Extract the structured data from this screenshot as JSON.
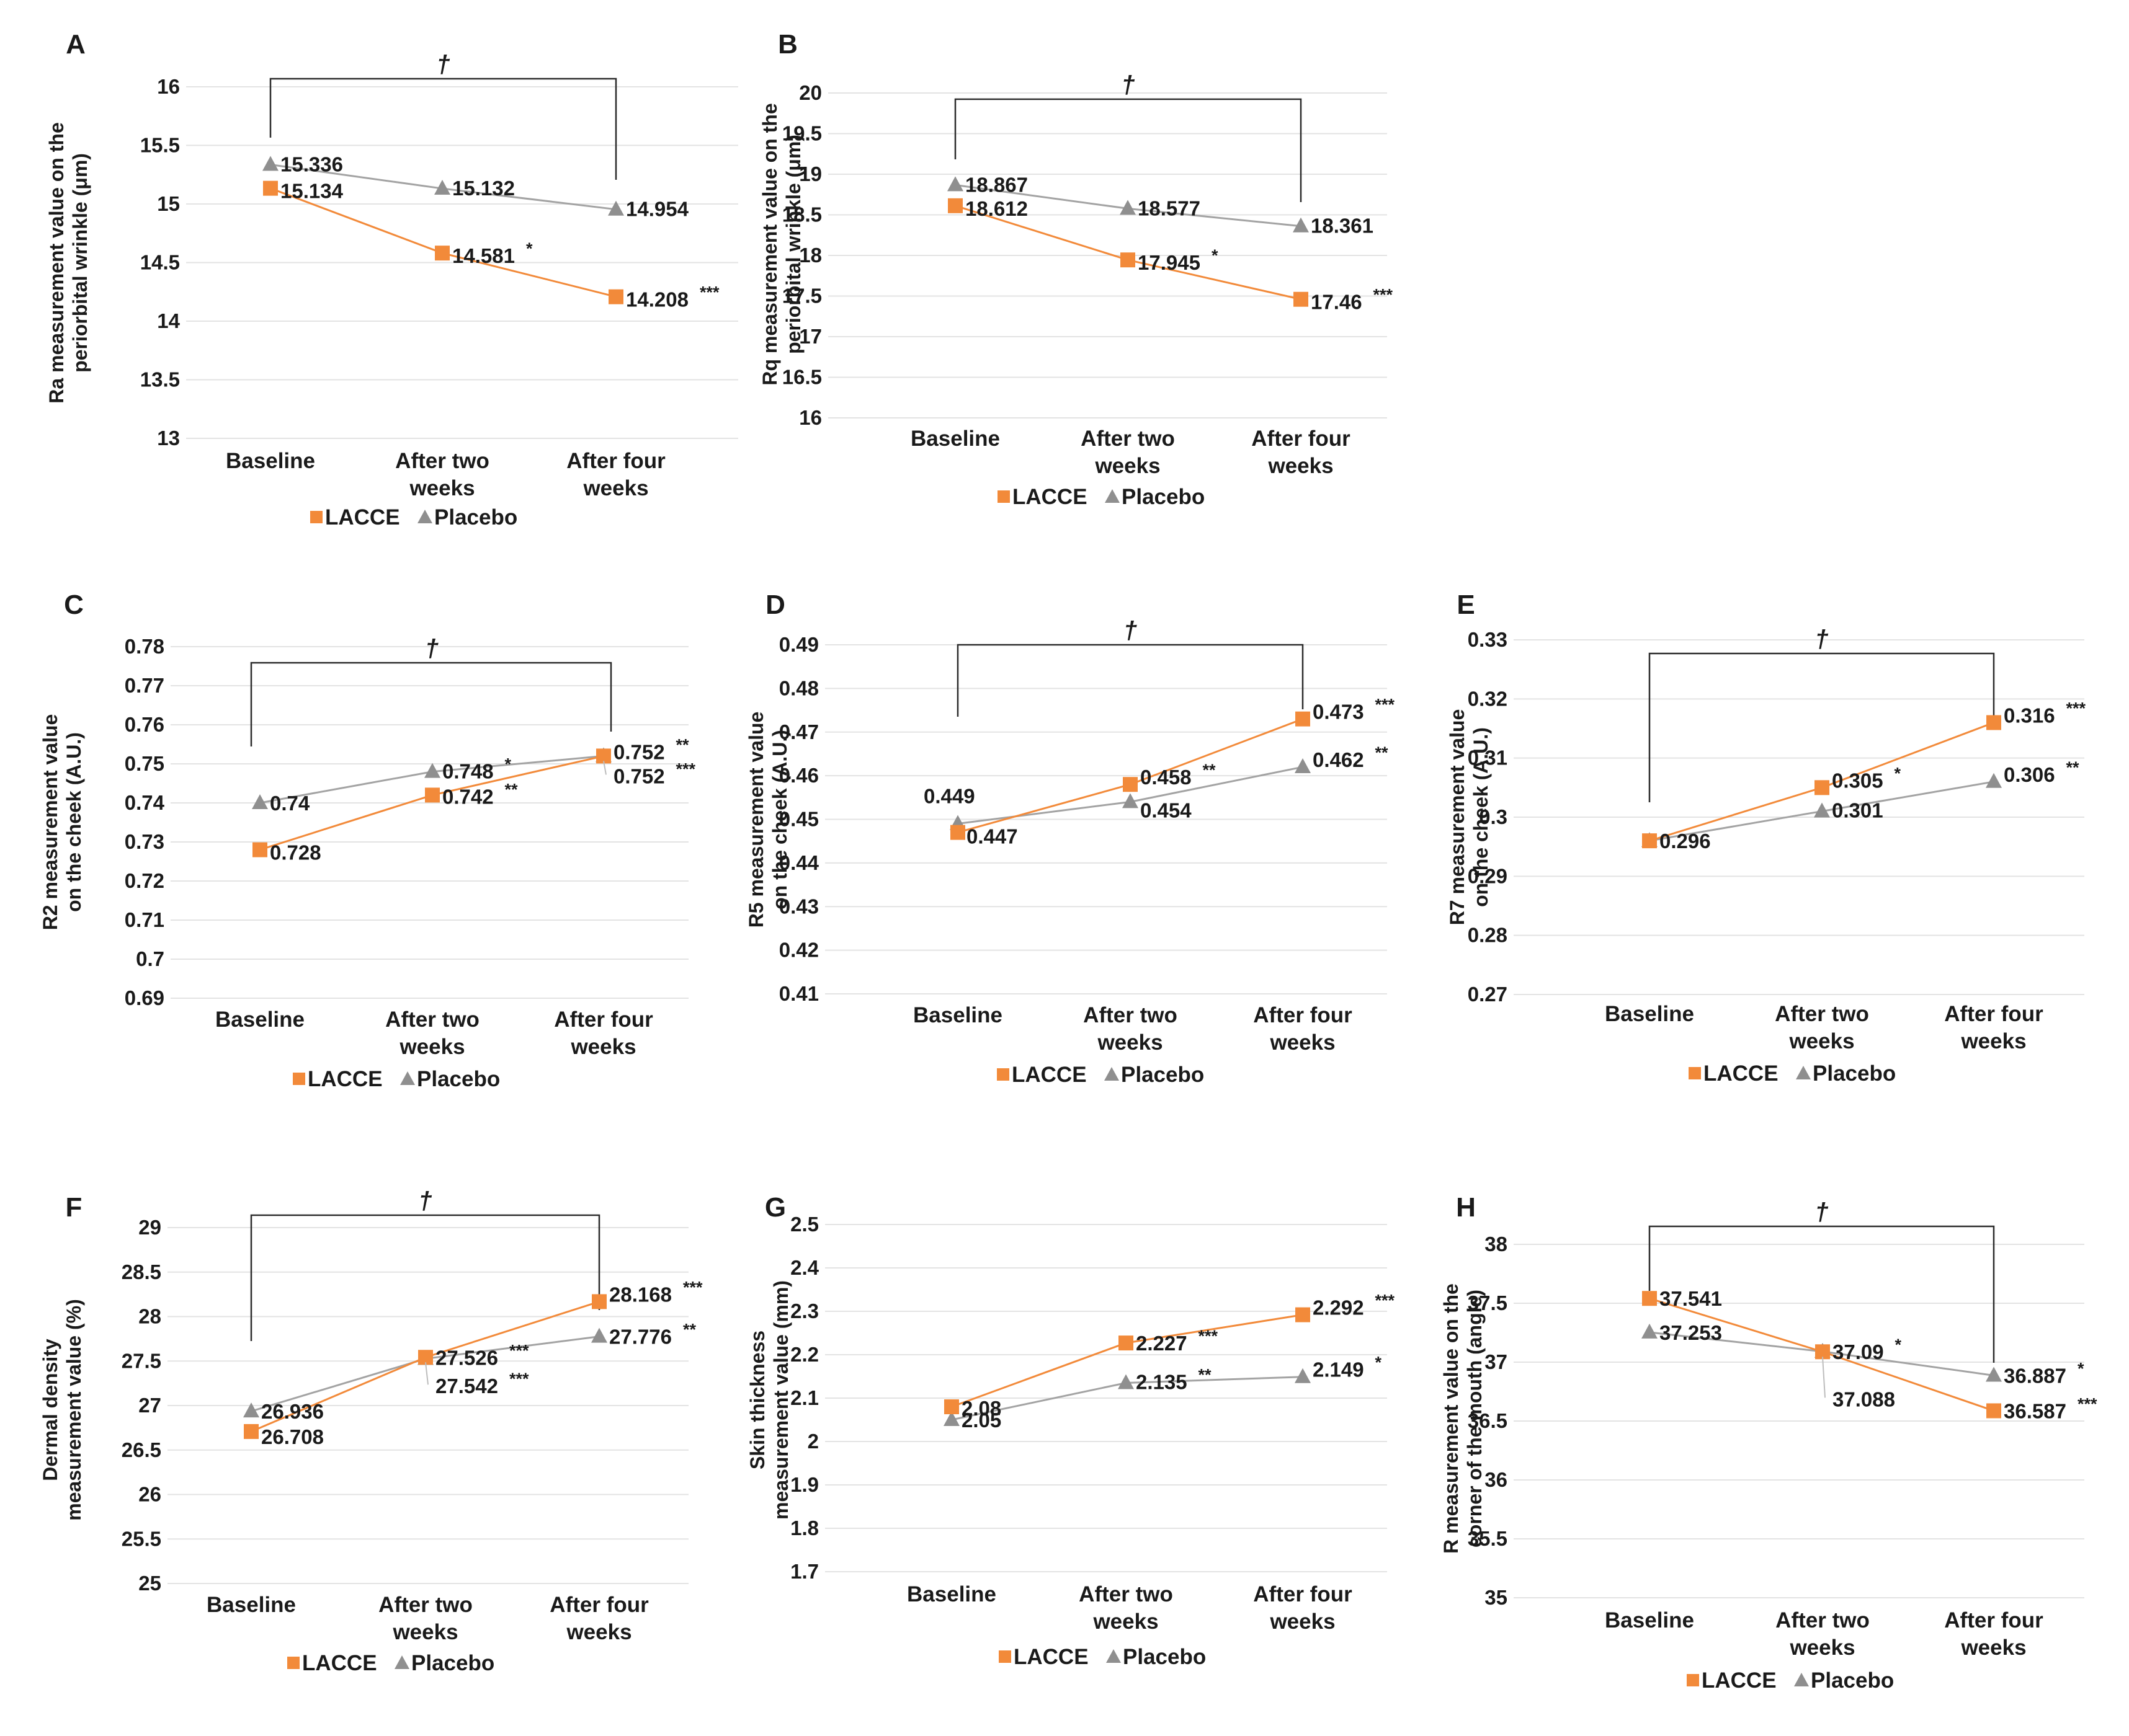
{
  "legend": {
    "lacce": "LACCE",
    "placebo": "Placebo"
  },
  "colors": {
    "lacce": "#F28A3A",
    "placebo": "#A3A3A3",
    "placebo_marker": "#8F8F8F",
    "grid": "#E3E3E3",
    "bracket": "#2B2B2B"
  },
  "categories": [
    [
      "Baseline"
    ],
    [
      "After two",
      "weeks"
    ],
    [
      "After four",
      "weeks"
    ]
  ],
  "significance_symbol": "†",
  "chart_data": [
    {
      "type": "line",
      "panel": "A",
      "ylabel": [
        "Ra measurement value on the",
        "periorbital wrinkle (μm)"
      ],
      "ylim": [
        13,
        16
      ],
      "ticks": [
        "13",
        "13.5",
        "14",
        "14.5",
        "15",
        "15.5",
        "16"
      ],
      "series": [
        {
          "name": "LACCE",
          "values": [
            15.134,
            14.581,
            14.208
          ],
          "labels": [
            "15.134",
            "14.581",
            "14.208"
          ],
          "stars": [
            "",
            "*",
            "***"
          ]
        },
        {
          "name": "Placebo",
          "values": [
            15.336,
            15.132,
            14.954
          ],
          "labels": [
            "15.336",
            "15.132",
            "14.954"
          ],
          "stars": [
            "",
            "",
            ""
          ]
        }
      ]
    },
    {
      "type": "line",
      "panel": "B",
      "ylabel": [
        "Rq measurement value on the",
        "periorbital wrinkle (μm)"
      ],
      "ylim": [
        16,
        20
      ],
      "ticks": [
        "16",
        "16.5",
        "17",
        "17.5",
        "18",
        "18.5",
        "19",
        "19.5",
        "20"
      ],
      "series": [
        {
          "name": "LACCE",
          "values": [
            18.612,
            17.945,
            17.46
          ],
          "labels": [
            "18.612",
            "17.945",
            "17.46"
          ],
          "stars": [
            "",
            "*",
            "***"
          ]
        },
        {
          "name": "Placebo",
          "values": [
            18.867,
            18.577,
            18.361
          ],
          "labels": [
            "18.867",
            "18.577",
            "18.361"
          ],
          "stars": [
            "",
            "",
            ""
          ]
        }
      ]
    },
    {
      "type": "line",
      "panel": "C",
      "ylabel": [
        "R2 measurement value",
        "on the cheek (A.U.)"
      ],
      "ylim": [
        0.69,
        0.78
      ],
      "ticks": [
        "0.69",
        "0.7",
        "0.71",
        "0.72",
        "0.73",
        "0.74",
        "0.75",
        "0.76",
        "0.77",
        "0.78"
      ],
      "series": [
        {
          "name": "LACCE",
          "values": [
            0.728,
            0.742,
            0.752
          ],
          "labels": [
            "0.728",
            "0.742",
            "0.752"
          ],
          "stars": [
            "",
            "**",
            "***"
          ]
        },
        {
          "name": "Placebo",
          "values": [
            0.74,
            0.748,
            0.752
          ],
          "labels": [
            "0.74",
            "0.748",
            "0.752"
          ],
          "stars": [
            "",
            "*",
            "**"
          ]
        }
      ]
    },
    {
      "type": "line",
      "panel": "D",
      "ylabel": [
        "R5 measurement value",
        "on the cheek (A.U.)"
      ],
      "ylim": [
        0.41,
        0.49
      ],
      "ticks": [
        "0.41",
        "0.42",
        "0.43",
        "0.44",
        "0.45",
        "0.46",
        "0.47",
        "0.48",
        "0.49"
      ],
      "series": [
        {
          "name": "LACCE",
          "values": [
            0.447,
            0.458,
            0.473
          ],
          "labels": [
            "0.447",
            "0.458",
            "0.473"
          ],
          "stars": [
            "",
            "**",
            "***"
          ]
        },
        {
          "name": "Placebo",
          "values": [
            0.449,
            0.454,
            0.462
          ],
          "labels": [
            "0.449",
            "0.454",
            "0.462"
          ],
          "stars": [
            "",
            "",
            "**"
          ]
        }
      ]
    },
    {
      "type": "line",
      "panel": "E",
      "ylabel": [
        "R7 measurement value",
        "on the cheek (A.U.)"
      ],
      "ylim": [
        0.27,
        0.33
      ],
      "ticks": [
        "0.27",
        "0.28",
        "0.29",
        "0.3",
        "0.31",
        "0.32",
        "0.33"
      ],
      "series": [
        {
          "name": "LACCE",
          "values": [
            0.296,
            0.305,
            0.316
          ],
          "labels": [
            "",
            "0.305",
            "0.316"
          ],
          "stars": [
            "",
            "*",
            "***"
          ]
        },
        {
          "name": "Placebo",
          "values": [
            0.296,
            0.301,
            0.306
          ],
          "labels": [
            "0.296",
            "0.301",
            "0.306"
          ],
          "stars": [
            "",
            "",
            "**"
          ]
        }
      ]
    },
    {
      "type": "line",
      "panel": "F",
      "ylabel": [
        "Dermal density",
        "measurement value (%)"
      ],
      "ylim": [
        25,
        29
      ],
      "ticks": [
        "25",
        "25.5",
        "26",
        "26.5",
        "27",
        "27.5",
        "28",
        "28.5",
        "29"
      ],
      "series": [
        {
          "name": "LACCE",
          "values": [
            26.708,
            27.542,
            28.168
          ],
          "labels": [
            "26.708",
            "27.542",
            "28.168"
          ],
          "stars": [
            "",
            "***",
            "***"
          ]
        },
        {
          "name": "Placebo",
          "values": [
            26.936,
            27.526,
            27.776
          ],
          "labels": [
            "26.936",
            "27.526",
            "27.776"
          ],
          "stars": [
            "",
            "***",
            "**"
          ]
        }
      ]
    },
    {
      "type": "line",
      "panel": "G",
      "ylabel": [
        "Skin thickness",
        "measurement value (mm)"
      ],
      "ylim": [
        1.7,
        2.5
      ],
      "ticks": [
        "1.7",
        "1.8",
        "1.9",
        "2",
        "2.1",
        "2.2",
        "2.3",
        "2.4",
        "2.5"
      ],
      "series": [
        {
          "name": "LACCE",
          "values": [
            2.08,
            2.227,
            2.292
          ],
          "labels": [
            "2.08",
            "2.227",
            "2.292"
          ],
          "stars": [
            "",
            "***",
            "***"
          ]
        },
        {
          "name": "Placebo",
          "values": [
            2.05,
            2.135,
            2.149
          ],
          "labels": [
            "2.05",
            "2.135",
            "2.149"
          ],
          "stars": [
            "",
            "**",
            "*"
          ]
        }
      ]
    },
    {
      "type": "line",
      "panel": "H",
      "ylabel": [
        "R measurement value on the",
        "corner of the mouth (angle)"
      ],
      "ylim": [
        35,
        38
      ],
      "ticks": [
        "35",
        "35.5",
        "36",
        "36.5",
        "37",
        "37.5",
        "38"
      ],
      "series": [
        {
          "name": "LACCE",
          "values": [
            37.541,
            37.088,
            36.587
          ],
          "labels": [
            "37.541",
            "37.088",
            "36.587"
          ],
          "stars": [
            "",
            "",
            "***"
          ]
        },
        {
          "name": "Placebo",
          "values": [
            37.253,
            37.09,
            36.887
          ],
          "labels": [
            "37.253",
            "37.09",
            "36.887"
          ],
          "stars": [
            "",
            "*",
            "*"
          ]
        }
      ]
    }
  ]
}
